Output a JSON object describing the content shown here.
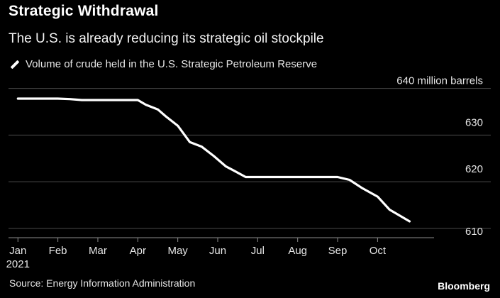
{
  "chart_data": {
    "type": "line",
    "title": "Strategic Withdrawal",
    "subtitle": "The U.S. is already reducing its strategic oil stockpile",
    "series": [
      {
        "name": "Volume of crude held in the U.S. Strategic Petroleum Reserve",
        "x": [
          0,
          0.5,
          1,
          1.3,
          1.6,
          2,
          2.5,
          3,
          3.2,
          3.5,
          3.7,
          4,
          4.3,
          4.6,
          4.9,
          5.2,
          5.4,
          5.7,
          6,
          6.5,
          7,
          7.5,
          8,
          8.3,
          8.6,
          9,
          9.3,
          9.6,
          9.8
        ],
        "values": [
          637.8,
          637.8,
          637.8,
          637.7,
          637.5,
          637.5,
          637.5,
          637.5,
          636.5,
          635.5,
          634,
          632,
          628.5,
          627.5,
          625.5,
          623.3,
          622.4,
          621,
          621,
          621,
          621,
          621,
          621,
          620.4,
          618.7,
          616.8,
          614,
          612.5,
          611.5
        ]
      }
    ],
    "x_tick_labels": [
      "Jan",
      "Feb",
      "Mar",
      "Apr",
      "May",
      "Jun",
      "Jul",
      "Aug",
      "Sep",
      "Oct"
    ],
    "x_year_label": "2021",
    "y_ticks": [
      {
        "value": 640,
        "label": "640 million barrels"
      },
      {
        "value": 630,
        "label": "630"
      },
      {
        "value": 620,
        "label": "620"
      },
      {
        "value": 610,
        "label": "610"
      }
    ],
    "ylim": [
      608,
      641
    ],
    "xlim": [
      -0.2,
      10.2
    ],
    "grid": true,
    "line_color": "#ffffff",
    "grid_color": "#4a4a4a"
  },
  "footer": {
    "source": "Source: Energy Information Administration",
    "brand": "Bloomberg"
  }
}
